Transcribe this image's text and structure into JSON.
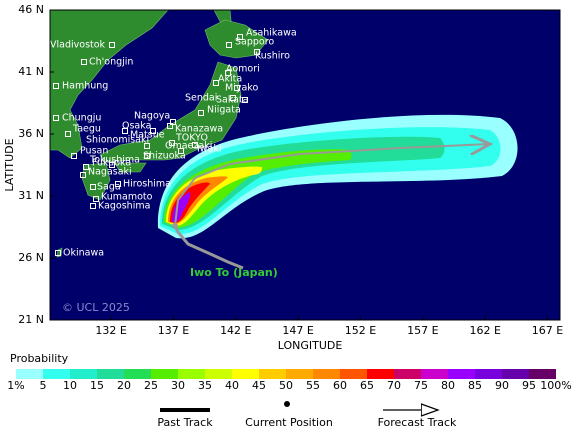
{
  "map": {
    "xlim": [
      127.1,
      168
    ],
    "ylim": [
      21,
      46
    ],
    "x_label": "LONGITUDE",
    "y_label": "LATITUDE",
    "xticks": [
      {
        "value": 132,
        "label": "132 E"
      },
      {
        "value": 137,
        "label": "137 E"
      },
      {
        "value": 142,
        "label": "142 E"
      },
      {
        "value": 147,
        "label": "147 E"
      },
      {
        "value": 152,
        "label": "152 E"
      },
      {
        "value": 157,
        "label": "157 E"
      },
      {
        "value": 162,
        "label": "162 E"
      },
      {
        "value": 167,
        "label": "167 E"
      }
    ],
    "yticks": [
      {
        "value": 21,
        "label": "21 N"
      },
      {
        "value": 26,
        "label": "26 N"
      },
      {
        "value": 31,
        "label": "31 N"
      },
      {
        "value": 36,
        "label": "36 N"
      },
      {
        "value": 41,
        "label": "41 N"
      },
      {
        "value": 46,
        "label": "46 N"
      }
    ],
    "cities": [
      "Vladivostok",
      "Ch'ongjin",
      "Hamhung",
      "Chungju",
      "Taegu",
      "Pusan",
      "Asahikawa",
      "Sapporo",
      "Kushiro",
      "Aomori",
      "Akita",
      "Miyako",
      "Sendai",
      "Sakata",
      "Niigata",
      "Nagoya",
      "Osaka",
      "Kanazawa",
      "Matsue",
      "Shionomisaki",
      "Iwaki",
      "TOKYO",
      "Omaezaki",
      "Shizuoka",
      "Tokushima",
      "Fukuoka",
      "Nagasaki",
      "Saga",
      "Hiroshima",
      "Kumamoto",
      "Kagoshima",
      "Okinawa"
    ],
    "storm_label": "Iwo To (Japan)",
    "copyright": "© UCL 2025"
  },
  "probability_scale": {
    "title": "Probability",
    "labels": [
      "1%",
      "5",
      "10",
      "15",
      "20",
      "25",
      "30",
      "35",
      "40",
      "45",
      "50",
      "55",
      "60",
      "65",
      "70",
      "75",
      "80",
      "85",
      "90",
      "95",
      "100%"
    ],
    "colors": [
      "#99ffff",
      "#33ffee",
      "#22eecc",
      "#22dd99",
      "#22dd55",
      "#55ee00",
      "#99ff00",
      "#ccff00",
      "#ffff00",
      "#ffcc00",
      "#ffaa00",
      "#ff8800",
      "#ff5500",
      "#ff0000",
      "#cc0066",
      "#cc00cc",
      "#9900ff",
      "#7700dd",
      "#6600aa",
      "#660066"
    ]
  },
  "legend": {
    "past_track": "Past Track",
    "current_position": "Current Position",
    "forecast_track": "Forecast Track"
  }
}
